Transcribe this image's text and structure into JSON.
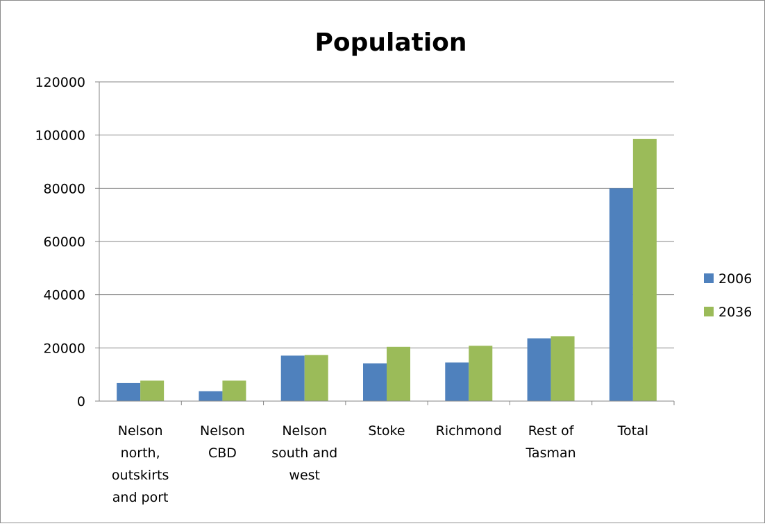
{
  "chart_data": {
    "type": "bar",
    "title": "Population",
    "xlabel": "",
    "ylabel": "",
    "ylim": [
      0,
      120000
    ],
    "yticks": [
      "0",
      "20000",
      "40000",
      "60000",
      "80000",
      "100000",
      "120000"
    ],
    "categories": [
      "Nelson north, outskirts and port",
      "Nelson CBD",
      "Nelson south and west",
      "Stoke",
      "Richmond",
      "Rest of Tasman",
      "Total"
    ],
    "category_lines": [
      [
        "Nelson",
        "north,",
        "outskirts",
        "and port"
      ],
      [
        "Nelson",
        "CBD"
      ],
      [
        "Nelson",
        "south and",
        "west"
      ],
      [
        "Stoke"
      ],
      [
        "Richmond"
      ],
      [
        "Rest of",
        "Tasman"
      ],
      [
        "Total"
      ]
    ],
    "series": [
      {
        "name": "2006",
        "color": "#4f81bd",
        "values": [
          6800,
          3700,
          17100,
          14200,
          14500,
          23600,
          80000
        ]
      },
      {
        "name": "2036",
        "color": "#9bbb59",
        "values": [
          7700,
          7700,
          17300,
          20400,
          20800,
          24400,
          98600
        ]
      }
    ],
    "grid": true,
    "legend_position": "right"
  }
}
